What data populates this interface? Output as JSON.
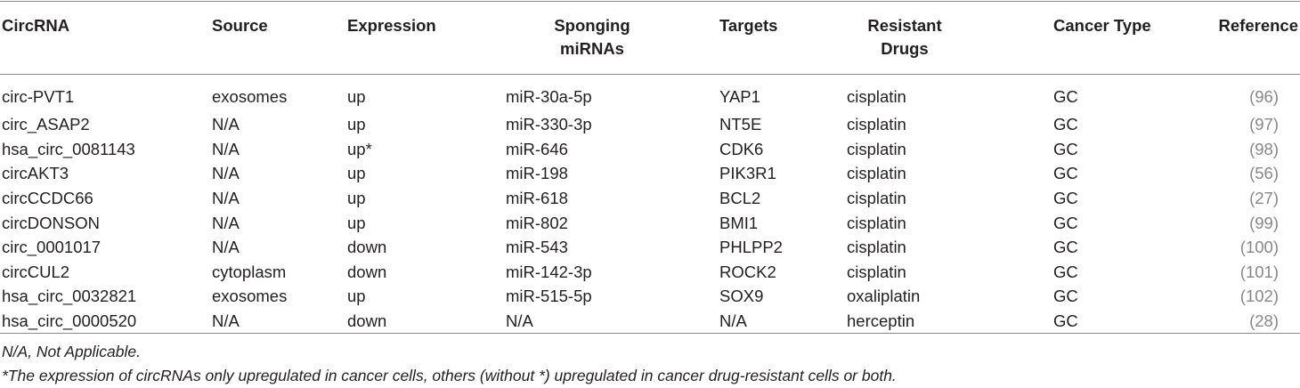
{
  "table": {
    "headers": [
      "CircRNA",
      "Source",
      "Expression",
      "Sponging miRNAs",
      "Targets",
      "Resistant Drugs",
      "Cancer Type",
      "Reference"
    ],
    "header_lines": {
      "sponging_1": "Sponging",
      "sponging_2": "miRNAs",
      "resistant_1": "Resistant",
      "resistant_2": "Drugs"
    },
    "rows": [
      {
        "circrna": "circ-PVT1",
        "source": "exosomes",
        "expression": "up",
        "mirna": "miR-30a-5p",
        "targets": "YAP1",
        "drugs": "cisplatin",
        "cancer": "GC",
        "ref_open": "(",
        "ref": "96",
        "ref_close": ")"
      },
      {
        "circrna": "circ_ASAP2",
        "source": "N/A",
        "expression": "up",
        "mirna": "miR-330-3p",
        "targets": "NT5E",
        "drugs": "cisplatin",
        "cancer": "GC",
        "ref_open": "(",
        "ref": "97",
        "ref_close": ")"
      },
      {
        "circrna": "hsa_circ_0081143",
        "source": "N/A",
        "expression": "up*",
        "mirna": "miR-646",
        "targets": "CDK6",
        "drugs": "cisplatin",
        "cancer": "GC",
        "ref_open": "(",
        "ref": "98",
        "ref_close": ")"
      },
      {
        "circrna": "circAKT3",
        "source": "N/A",
        "expression": "up",
        "mirna": "miR-198",
        "targets": "PIK3R1",
        "drugs": "cisplatin",
        "cancer": "GC",
        "ref_open": "(",
        "ref": "56",
        "ref_close": ")"
      },
      {
        "circrna": "circCCDC66",
        "source": "N/A",
        "expression": "up",
        "mirna": "miR-618",
        "targets": "BCL2",
        "drugs": "cisplatin",
        "cancer": "GC",
        "ref_open": "(",
        "ref": "27",
        "ref_close": ")"
      },
      {
        "circrna": "circDONSON",
        "source": "N/A",
        "expression": "up",
        "mirna": "miR-802",
        "targets": "BMI1",
        "drugs": "cisplatin",
        "cancer": "GC",
        "ref_open": "(",
        "ref": "99",
        "ref_close": ")"
      },
      {
        "circrna": "circ_0001017",
        "source": "N/A",
        "expression": "down",
        "mirna": "miR-543",
        "targets": "PHLPP2",
        "drugs": "cisplatin",
        "cancer": "GC",
        "ref_open": "(",
        "ref": "100",
        "ref_close": ")"
      },
      {
        "circrna": "circCUL2",
        "source": "cytoplasm",
        "expression": "down",
        "mirna": "miR-142-3p",
        "targets": "ROCK2",
        "drugs": "cisplatin",
        "cancer": "GC",
        "ref_open": "(",
        "ref": "101",
        "ref_close": ")"
      },
      {
        "circrna": "hsa_circ_0032821",
        "source": "exosomes",
        "expression": "up",
        "mirna": "miR-515-5p",
        "targets": "SOX9",
        "drugs": "oxaliplatin",
        "cancer": "GC",
        "ref_open": "(",
        "ref": "102",
        "ref_close": ")"
      },
      {
        "circrna": "hsa_circ_0000520",
        "source": "N/A",
        "expression": "down",
        "mirna": "N/A",
        "targets": "N/A",
        "drugs": "herceptin",
        "cancer": "GC",
        "ref_open": "(",
        "ref": "28",
        "ref_close": ")"
      }
    ]
  },
  "footnotes": [
    "N/A, Not Applicable.",
    "*The expression of circRNAs only upregulated in cancer cells, others (without *) upregulated in cancer drug-resistant cells or both."
  ],
  "colors": {
    "text": "#231f20",
    "reference_link": "#888888",
    "rule": "#8a8a8a"
  }
}
